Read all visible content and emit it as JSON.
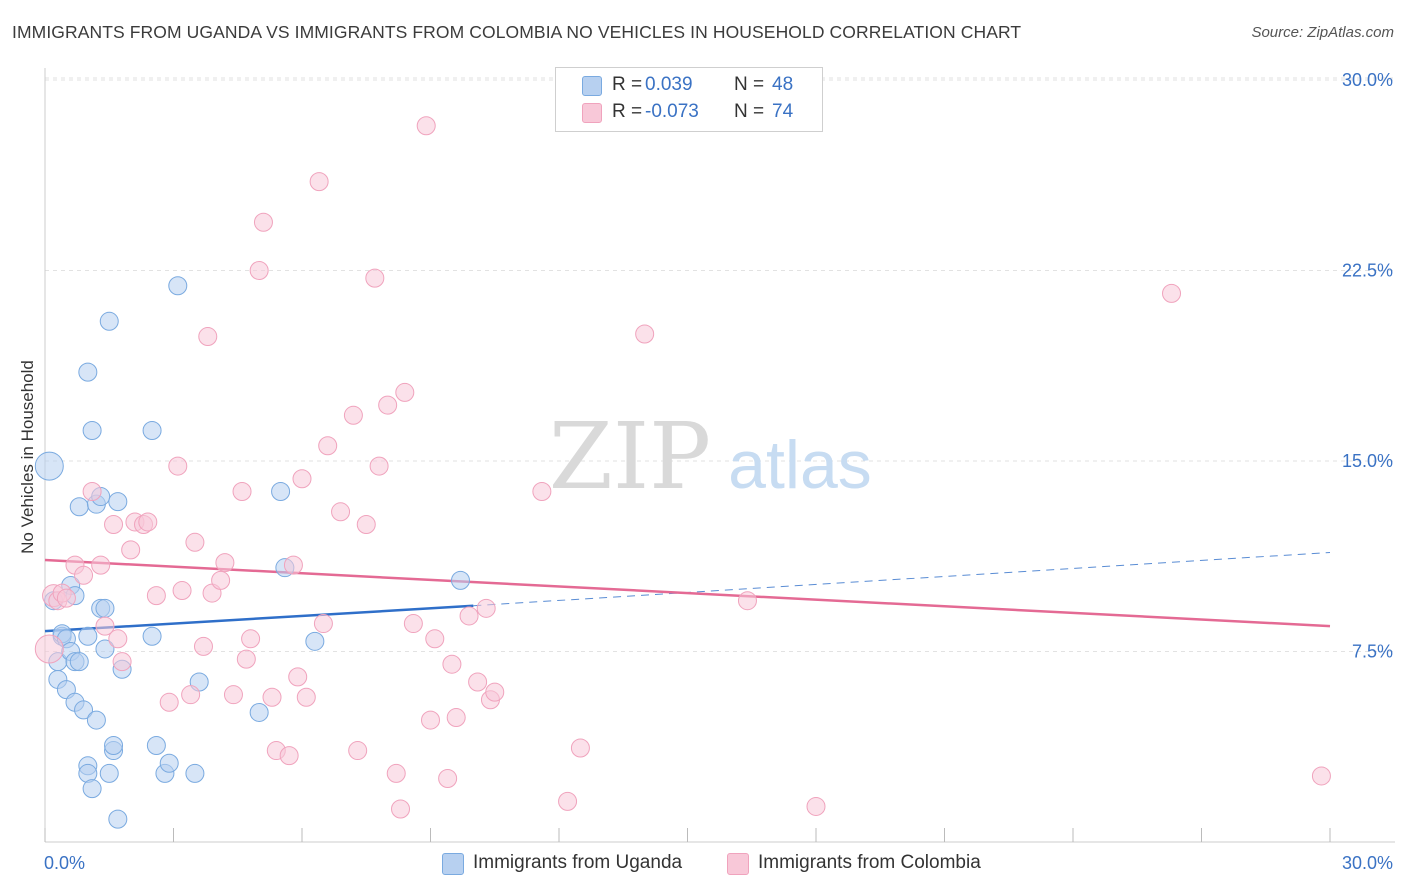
{
  "title": "IMMIGRANTS FROM UGANDA VS IMMIGRANTS FROM COLOMBIA NO VEHICLES IN HOUSEHOLD CORRELATION CHART",
  "source": "Source: ZipAtlas.com",
  "watermark": {
    "zip": "ZIP",
    "atlas": "atlas"
  },
  "legend": {
    "r_label": "R =",
    "n_label": "N =",
    "rows": [
      {
        "series": "Immigrants from Uganda",
        "r": "0.039",
        "n": "48"
      },
      {
        "series": "Immigrants from Colombia",
        "r": "-0.073",
        "n": "74"
      }
    ]
  },
  "chart_data": {
    "type": "scatter",
    "title": "IMMIGRANTS FROM UGANDA VS IMMIGRANTS FROM COLOMBIA NO VEHICLES IN HOUSEHOLD CORRELATION CHART",
    "xlabel": "",
    "ylabel": "No Vehicles in Household",
    "xlim": [
      0,
      30
    ],
    "ylim": [
      0,
      30
    ],
    "x_tick_labels": [
      "0.0%",
      "30.0%"
    ],
    "y_ticks": [
      7.5,
      15.0,
      22.5,
      30.0
    ],
    "y_tick_labels": [
      "7.5%",
      "15.0%",
      "22.5%",
      "30.0%"
    ],
    "grid": true,
    "legend_position": "top-center",
    "series": [
      {
        "name": "Immigrants from Uganda",
        "color": "#7aaae0",
        "fill": "#b7d0f0",
        "line_color": "#2f6fc9",
        "r": 0.039,
        "n": 48,
        "trend": {
          "x0": 0,
          "y0": 8.3,
          "x1": 10,
          "y1": 9.3,
          "dash_to_x": 30,
          "dash_to_y": 11.4
        },
        "points": [
          [
            0.1,
            14.8
          ],
          [
            0.2,
            9.5
          ],
          [
            0.3,
            7.1
          ],
          [
            0.3,
            6.4
          ],
          [
            0.4,
            8.1
          ],
          [
            0.4,
            8.2
          ],
          [
            0.5,
            6.0
          ],
          [
            0.5,
            8.0
          ],
          [
            0.6,
            7.5
          ],
          [
            0.6,
            10.1
          ],
          [
            0.7,
            9.7
          ],
          [
            0.7,
            5.5
          ],
          [
            0.7,
            7.1
          ],
          [
            0.8,
            7.1
          ],
          [
            0.8,
            13.2
          ],
          [
            0.9,
            5.2
          ],
          [
            1.0,
            18.5
          ],
          [
            1.0,
            3.0
          ],
          [
            1.0,
            2.7
          ],
          [
            1.1,
            2.1
          ],
          [
            1.1,
            16.2
          ],
          [
            1.2,
            13.3
          ],
          [
            1.2,
            4.8
          ],
          [
            1.3,
            13.6
          ],
          [
            1.3,
            9.2
          ],
          [
            1.4,
            7.6
          ],
          [
            1.4,
            9.2
          ],
          [
            1.5,
            20.5
          ],
          [
            1.5,
            2.7
          ],
          [
            1.6,
            3.6
          ],
          [
            1.6,
            3.8
          ],
          [
            1.7,
            0.9
          ],
          [
            1.7,
            13.4
          ],
          [
            1.8,
            6.8
          ],
          [
            2.5,
            16.2
          ],
          [
            2.5,
            8.1
          ],
          [
            2.6,
            3.8
          ],
          [
            2.8,
            2.7
          ],
          [
            2.9,
            3.1
          ],
          [
            3.1,
            21.9
          ],
          [
            3.5,
            2.7
          ],
          [
            3.6,
            6.3
          ],
          [
            5.0,
            5.1
          ],
          [
            5.5,
            13.8
          ],
          [
            5.6,
            10.8
          ],
          [
            6.3,
            7.9
          ],
          [
            9.7,
            10.3
          ],
          [
            1.0,
            8.1
          ]
        ],
        "sizes": [
          14,
          9,
          9,
          9,
          9,
          9,
          9,
          9,
          9,
          9,
          9,
          9,
          9,
          9,
          9,
          9,
          9,
          9,
          9,
          9,
          9,
          9,
          9,
          9,
          9,
          9,
          9,
          9,
          9,
          9,
          9,
          9,
          9,
          9,
          9,
          9,
          9,
          9,
          9,
          9,
          9,
          9,
          9,
          9,
          9,
          9,
          9,
          9
        ]
      },
      {
        "name": "Immigrants from Colombia",
        "color": "#f0a3bd",
        "fill": "#f8c8d8",
        "line_color": "#e46a94",
        "r": -0.073,
        "n": 74,
        "trend": {
          "x0": 0,
          "y0": 11.1,
          "x1": 30,
          "y1": 8.5
        },
        "points": [
          [
            0.1,
            7.6
          ],
          [
            0.2,
            9.7
          ],
          [
            0.3,
            9.5
          ],
          [
            0.4,
            9.8
          ],
          [
            0.5,
            9.6
          ],
          [
            0.7,
            10.9
          ],
          [
            0.9,
            10.5
          ],
          [
            1.1,
            13.8
          ],
          [
            1.3,
            10.9
          ],
          [
            1.4,
            8.5
          ],
          [
            1.6,
            12.5
          ],
          [
            1.7,
            8.0
          ],
          [
            1.8,
            7.1
          ],
          [
            2.0,
            11.5
          ],
          [
            2.1,
            12.6
          ],
          [
            2.3,
            12.5
          ],
          [
            2.4,
            12.6
          ],
          [
            2.6,
            9.7
          ],
          [
            2.9,
            5.5
          ],
          [
            3.1,
            14.8
          ],
          [
            3.2,
            9.9
          ],
          [
            3.4,
            5.8
          ],
          [
            3.5,
            11.8
          ],
          [
            3.7,
            7.7
          ],
          [
            3.8,
            19.9
          ],
          [
            3.9,
            9.8
          ],
          [
            4.1,
            10.3
          ],
          [
            4.2,
            11.0
          ],
          [
            4.4,
            5.8
          ],
          [
            4.6,
            13.8
          ],
          [
            4.7,
            7.2
          ],
          [
            4.8,
            8.0
          ],
          [
            5.0,
            22.5
          ],
          [
            5.1,
            24.4
          ],
          [
            5.3,
            5.7
          ],
          [
            5.4,
            3.6
          ],
          [
            5.7,
            3.4
          ],
          [
            5.8,
            10.9
          ],
          [
            5.9,
            6.5
          ],
          [
            6.0,
            14.3
          ],
          [
            6.1,
            5.7
          ],
          [
            6.4,
            26.0
          ],
          [
            6.5,
            8.6
          ],
          [
            6.6,
            15.6
          ],
          [
            6.9,
            13.0
          ],
          [
            7.2,
            16.8
          ],
          [
            7.3,
            3.6
          ],
          [
            7.5,
            12.5
          ],
          [
            7.7,
            22.2
          ],
          [
            7.8,
            14.8
          ],
          [
            8.0,
            17.2
          ],
          [
            8.2,
            2.7
          ],
          [
            8.3,
            1.3
          ],
          [
            8.4,
            17.7
          ],
          [
            8.6,
            8.6
          ],
          [
            8.9,
            28.2
          ],
          [
            9.0,
            4.8
          ],
          [
            9.1,
            8.0
          ],
          [
            9.4,
            2.5
          ],
          [
            9.5,
            7.0
          ],
          [
            9.6,
            4.9
          ],
          [
            9.9,
            8.9
          ],
          [
            10.1,
            6.3
          ],
          [
            10.3,
            9.2
          ],
          [
            10.4,
            5.6
          ],
          [
            10.5,
            5.9
          ],
          [
            11.6,
            13.8
          ],
          [
            12.2,
            1.6
          ],
          [
            12.5,
            3.7
          ],
          [
            14.0,
            20.0
          ],
          [
            16.4,
            9.5
          ],
          [
            18.0,
            1.4
          ],
          [
            26.3,
            21.6
          ],
          [
            29.8,
            2.6
          ]
        ],
        "sizes": [
          14,
          11,
          9,
          9,
          9,
          9,
          9,
          9,
          9,
          9,
          9,
          9,
          9,
          9,
          9,
          9,
          9,
          9,
          9,
          9,
          9,
          9,
          9,
          9,
          9,
          9,
          9,
          9,
          9,
          9,
          9,
          9,
          9,
          9,
          9,
          9,
          9,
          9,
          9,
          9,
          9,
          9,
          9,
          9,
          9,
          9,
          9,
          9,
          9,
          9,
          9,
          9,
          9,
          9,
          9,
          9,
          9,
          9,
          9,
          9,
          9,
          9,
          9,
          9,
          9,
          9,
          9,
          9,
          9,
          9,
          9,
          9,
          9,
          9
        ]
      }
    ]
  }
}
